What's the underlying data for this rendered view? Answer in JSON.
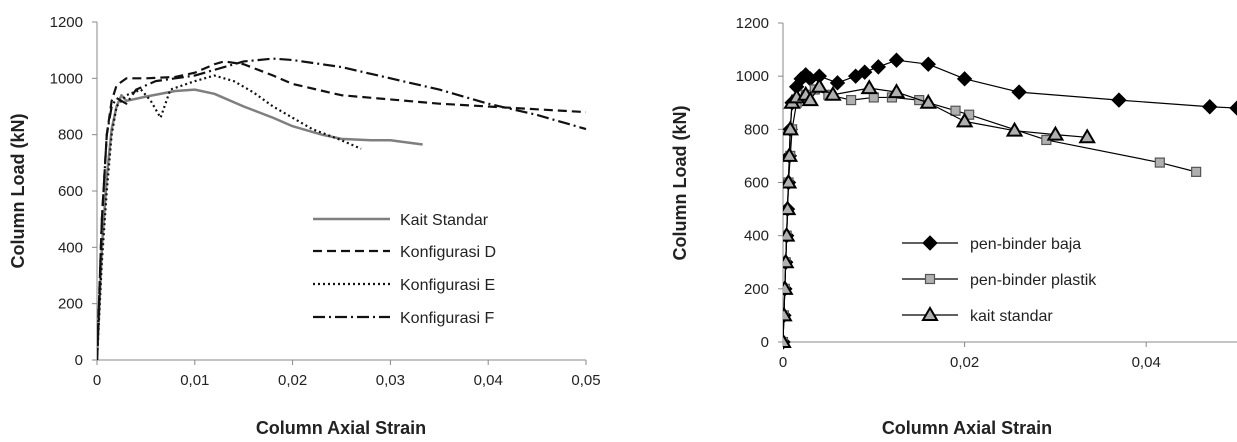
{
  "chart_data": [
    {
      "type": "line",
      "title": "",
      "xlabel": "Column Axial Strain",
      "ylabel": "Column Load  (kN)",
      "xlim": [
        0,
        0.05
      ],
      "ylim": [
        0,
        1200
      ],
      "xticks": [
        0,
        0.01,
        0.02,
        0.03,
        0.04,
        0.05
      ],
      "xtick_labels": [
        "0",
        "0,01",
        "0,02",
        "0,03",
        "0,04",
        "0,05"
      ],
      "yticks": [
        0,
        200,
        400,
        600,
        800,
        1000,
        1200
      ],
      "ytick_labels": [
        "0",
        "200",
        "400",
        "600",
        "800",
        "1000",
        "1200"
      ],
      "grid": false,
      "legend_position": "bottom-right",
      "series": [
        {
          "name": "Kait Standar",
          "color": "#7f7f7f",
          "style": "solid",
          "x": [
            0,
            0.0005,
            0.001,
            0.0015,
            0.002,
            0.0025,
            0.003,
            0.005,
            0.008,
            0.01,
            0.012,
            0.015,
            0.018,
            0.02,
            0.023,
            0.025,
            0.028,
            0.03,
            0.0333
          ],
          "y": [
            0,
            400,
            650,
            820,
            900,
            940,
            920,
            935,
            955,
            960,
            945,
            900,
            860,
            830,
            800,
            785,
            780,
            780,
            765
          ]
        },
        {
          "name": "Konfigurasi D",
          "color": "#111111",
          "style": "dashed",
          "x": [
            0,
            0.0005,
            0.001,
            0.0015,
            0.002,
            0.003,
            0.005,
            0.008,
            0.01,
            0.012,
            0.013,
            0.015,
            0.018,
            0.02,
            0.025,
            0.03,
            0.035,
            0.04,
            0.045,
            0.05
          ],
          "y": [
            0,
            500,
            800,
            920,
            975,
            1000,
            1000,
            1005,
            1020,
            1050,
            1060,
            1050,
            1010,
            980,
            940,
            925,
            910,
            900,
            890,
            880
          ]
        },
        {
          "name": "Konfigurasi E",
          "color": "#111111",
          "style": "dotted",
          "x": [
            0,
            0.0005,
            0.001,
            0.0015,
            0.002,
            0.003,
            0.0045,
            0.0055,
            0.0065,
            0.0075,
            0.01,
            0.012,
            0.014,
            0.016,
            0.018,
            0.02,
            0.022,
            0.025,
            0.027
          ],
          "y": [
            0,
            350,
            600,
            800,
            900,
            940,
            960,
            920,
            860,
            960,
            990,
            1010,
            990,
            950,
            900,
            860,
            820,
            780,
            750
          ]
        },
        {
          "name": "Konfigurasi F",
          "color": "#111111",
          "style": "dashdot",
          "x": [
            0,
            0.0005,
            0.001,
            0.0015,
            0.002,
            0.003,
            0.004,
            0.006,
            0.008,
            0.01,
            0.012,
            0.015,
            0.018,
            0.02,
            0.025,
            0.03,
            0.035,
            0.04,
            0.045,
            0.05
          ],
          "y": [
            0,
            500,
            800,
            900,
            930,
            910,
            960,
            990,
            1000,
            1010,
            1030,
            1060,
            1070,
            1065,
            1040,
            1000,
            960,
            910,
            870,
            820
          ]
        }
      ]
    },
    {
      "type": "line",
      "title": "",
      "xlabel": "Column Axial Strain",
      "ylabel": "Column Load  (kN)",
      "xlim": [
        0,
        0.05
      ],
      "ylim": [
        0,
        1200
      ],
      "xticks": [
        0,
        0.02,
        0.04
      ],
      "xtick_labels": [
        "0",
        "0,02",
        "0,04"
      ],
      "yticks": [
        0,
        200,
        400,
        600,
        800,
        1000,
        1200
      ],
      "ytick_labels": [
        "0",
        "200",
        "400",
        "600",
        "800",
        "1000",
        "1200"
      ],
      "grid": false,
      "legend_position": "bottom-right",
      "series": [
        {
          "name": "pen-binder baja",
          "color": "#000000",
          "marker": "diamond",
          "x": [
            0,
            0.0001,
            0.0002,
            0.0003,
            0.0004,
            0.0005,
            0.0006,
            0.0007,
            0.0008,
            0.001,
            0.0015,
            0.002,
            0.0025,
            0.003,
            0.004,
            0.006,
            0.008,
            0.009,
            0.0105,
            0.0125,
            0.016,
            0.02,
            0.026,
            0.037,
            0.047,
            0.05
          ],
          "y": [
            0,
            100,
            200,
            300,
            400,
            500,
            600,
            700,
            800,
            900,
            960,
            990,
            1005,
            990,
            1000,
            975,
            1000,
            1015,
            1035,
            1060,
            1045,
            990,
            940,
            910,
            885,
            880
          ]
        },
        {
          "name": "pen-binder plastik",
          "color": "#000000",
          "fill": "#b0b0b0",
          "marker": "square",
          "x": [
            0,
            0.0001,
            0.0002,
            0.0003,
            0.0004,
            0.0006,
            0.0008,
            0.001,
            0.0015,
            0.0025,
            0.0035,
            0.005,
            0.0075,
            0.01,
            0.012,
            0.015,
            0.019,
            0.0205,
            0.029,
            0.0415,
            0.0455
          ],
          "y": [
            0,
            100,
            200,
            300,
            400,
            600,
            700,
            800,
            900,
            930,
            950,
            930,
            910,
            920,
            920,
            910,
            870,
            855,
            760,
            675,
            640
          ]
        },
        {
          "name": "kait standar",
          "color": "#000000",
          "fill": "#b0b0b0",
          "marker": "triangle",
          "x": [
            0,
            0.0001,
            0.0002,
            0.0003,
            0.0004,
            0.0005,
            0.0006,
            0.0007,
            0.0008,
            0.001,
            0.0015,
            0.0025,
            0.003,
            0.004,
            0.0055,
            0.0095,
            0.0125,
            0.016,
            0.02,
            0.0255,
            0.03,
            0.0335
          ],
          "y": [
            0,
            100,
            200,
            300,
            400,
            500,
            600,
            700,
            800,
            900,
            920,
            930,
            910,
            960,
            930,
            955,
            940,
            900,
            830,
            795,
            780,
            770
          ]
        }
      ]
    }
  ]
}
